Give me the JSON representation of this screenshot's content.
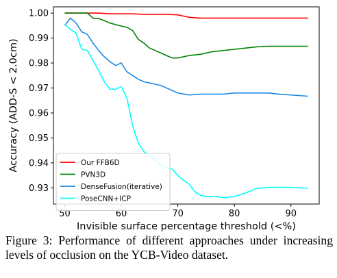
{
  "chart_data": {
    "type": "line",
    "xlabel": "Invisible surface percentage threshold (<%)",
    "ylabel": "Accuracy (ADD-S < 2.0cm)",
    "xlim": [
      48,
      95
    ],
    "ylim": [
      0.9235,
      1.0025
    ],
    "xticks": [
      "50",
      "60",
      "70",
      "80",
      "90"
    ],
    "xtick_values": [
      50,
      60,
      70,
      80,
      90
    ],
    "yticks": [
      "0.93",
      "0.94",
      "0.95",
      "0.96",
      "0.97",
      "0.98",
      "0.99",
      "1.00"
    ],
    "ytick_values": [
      0.93,
      0.94,
      0.95,
      0.96,
      0.97,
      0.98,
      0.99,
      1.0
    ],
    "grid": false,
    "legend_position": "bottom-left",
    "series": [
      {
        "name": "Our FFB6D",
        "color": "#ff0000",
        "x": [
          50,
          52,
          54,
          56,
          58,
          60,
          62,
          64,
          66,
          68,
          69,
          70,
          71,
          72,
          74,
          76,
          78,
          80,
          82,
          84,
          86,
          88,
          90,
          93
        ],
        "y": [
          1.0,
          1.0,
          1.0,
          1.0,
          0.9997,
          0.9997,
          0.9997,
          0.9995,
          0.9995,
          0.9995,
          0.9994,
          0.9993,
          0.9988,
          0.9983,
          0.998,
          0.998,
          0.998,
          0.998,
          0.998,
          0.998,
          0.998,
          0.998,
          0.998,
          0.998
        ]
      },
      {
        "name": "PVN3D",
        "color": "#008000",
        "x": [
          50,
          52,
          54,
          55,
          56,
          57,
          58,
          60,
          61,
          62,
          63,
          64,
          65,
          66,
          67,
          68,
          69,
          70,
          71,
          72,
          74,
          76,
          78,
          80,
          82,
          84,
          86,
          88,
          90,
          93
        ],
        "y": [
          1.0,
          1.0,
          1.0,
          0.998,
          0.9978,
          0.997,
          0.996,
          0.9948,
          0.9943,
          0.993,
          0.9895,
          0.988,
          0.986,
          0.985,
          0.984,
          0.983,
          0.982,
          0.982,
          0.9825,
          0.983,
          0.9835,
          0.9845,
          0.985,
          0.9855,
          0.986,
          0.9865,
          0.9867,
          0.9867,
          0.9867,
          0.9867
        ]
      },
      {
        "name": "DenseFusion(iterative)",
        "color": "#1e88e5",
        "x": [
          50,
          51,
          52,
          53,
          54,
          55,
          56,
          57,
          58,
          59,
          60,
          61,
          62,
          63,
          64,
          65,
          66,
          67,
          68,
          69,
          70,
          72,
          74,
          76,
          78,
          80,
          82,
          84,
          86,
          88,
          90,
          93
        ],
        "y": [
          0.995,
          0.998,
          0.996,
          0.9925,
          0.9915,
          0.988,
          0.985,
          0.9825,
          0.9805,
          0.979,
          0.98,
          0.9765,
          0.975,
          0.9735,
          0.9725,
          0.972,
          0.9715,
          0.971,
          0.97,
          0.969,
          0.968,
          0.9672,
          0.9675,
          0.9675,
          0.9675,
          0.968,
          0.968,
          0.968,
          0.968,
          0.9675,
          0.9672,
          0.9667
        ]
      },
      {
        "name": "PoseCNN+ICP",
        "color": "#00ffff",
        "x": [
          50,
          51,
          52,
          53,
          54,
          55,
          56,
          57,
          58,
          59,
          60,
          61,
          62,
          63,
          64,
          65,
          66,
          67,
          68,
          69,
          70,
          71,
          72,
          73,
          74,
          75,
          76,
          77,
          78,
          80,
          82,
          84,
          86,
          88,
          90,
          93
        ],
        "y": [
          0.9955,
          0.9935,
          0.992,
          0.9855,
          0.985,
          0.981,
          0.977,
          0.9725,
          0.9695,
          0.9695,
          0.9705,
          0.966,
          0.955,
          0.948,
          0.9445,
          0.943,
          0.941,
          0.939,
          0.938,
          0.9375,
          0.935,
          0.933,
          0.9315,
          0.9285,
          0.927,
          0.9265,
          0.9265,
          0.9265,
          0.926,
          0.9265,
          0.928,
          0.9298,
          0.9302,
          0.9302,
          0.9302,
          0.9298
        ]
      }
    ]
  },
  "caption": "Figure 3:  Performance of different approaches under increasing levels of occlusion on the YCB-Video dataset."
}
